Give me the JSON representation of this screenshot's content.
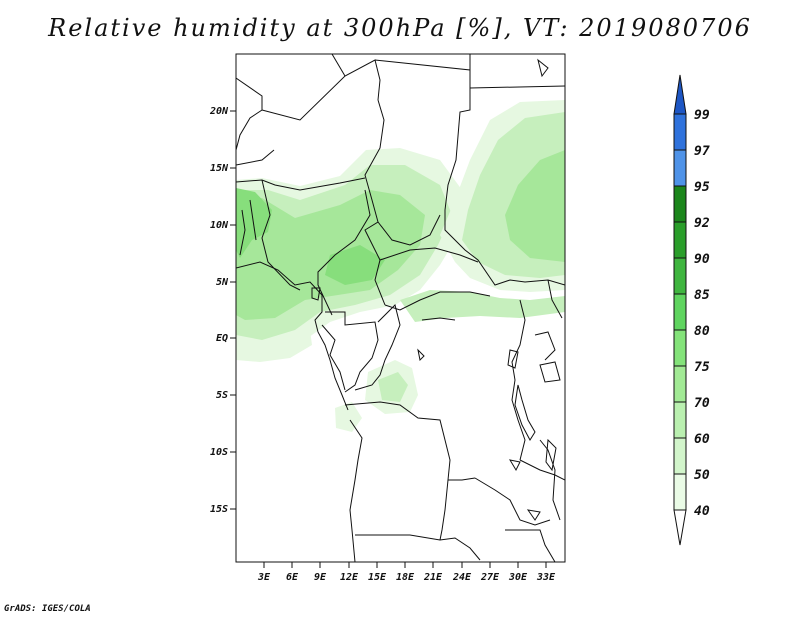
{
  "title": "Relative humidity at 300hPa [%], VT: 2019080706",
  "footer": "GrADS: IGES/COLA",
  "map": {
    "lat_labels": [
      "20N",
      "15N",
      "10N",
      "5N",
      "EQ",
      "5S",
      "10S",
      "15S"
    ],
    "lon_labels": [
      "3E",
      "6E",
      "9E",
      "12E",
      "15E",
      "18E",
      "21E",
      "24E",
      "27E",
      "30E",
      "33E"
    ]
  },
  "colorbar": {
    "levels": [
      "40",
      "50",
      "60",
      "70",
      "75",
      "80",
      "85",
      "90",
      "92",
      "95",
      "97",
      "99"
    ],
    "colors": [
      "#ffffff",
      "#eafbe6",
      "#d2f5cb",
      "#baf0b0",
      "#a2ea95",
      "#84e37a",
      "#5fd45f",
      "#3fb53f",
      "#2a9e2a",
      "#1b861b",
      "#4f93e8",
      "#2f72dc",
      "#1d56c4"
    ]
  },
  "humidity_fill_colors": {
    "faint": "#e6f8e1",
    "light": "#c6efbd",
    "medium": "#a6e79a",
    "strong": "#87de7c"
  }
}
